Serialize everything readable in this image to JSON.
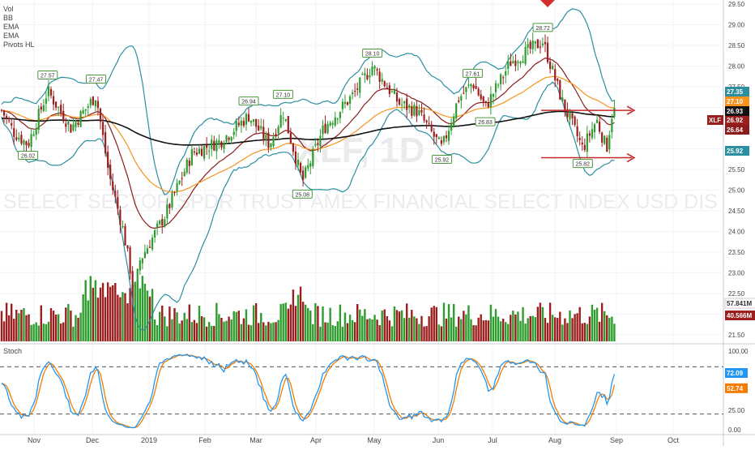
{
  "watermark": {
    "symbol": "XLF, 1D",
    "description": "SELECT SECTOR SPDR TRUST AMEX FINANCIAL SELECT INDEX USD DIS"
  },
  "indicators_legend": [
    "Vol",
    "BB",
    "EMA",
    "EMA",
    "Pivots HL"
  ],
  "stoch_label": "Stoch",
  "colors": {
    "up": "#2e9d2e",
    "down": "#9b1f1f",
    "bb": "#2b8fa0",
    "ema_fast": "#8c1c1c",
    "ema_mid": "#f7931e",
    "ema_slow": "#111111",
    "stoch_k": "#2196f3",
    "stoch_d": "#f57c00",
    "pivot_box": "#4b9b3a",
    "arrow": "#c62828"
  },
  "chart_data": [
    {
      "type": "candlestick",
      "title": "XLF, 1D",
      "xlabel": "",
      "ylabel": "",
      "ylim": [
        21.3,
        29.6
      ],
      "y_ticks": [
        21.5,
        22.0,
        22.5,
        23.0,
        23.5,
        24.0,
        24.5,
        25.0,
        25.5,
        26.0,
        26.5,
        27.0,
        27.5,
        28.0,
        28.5,
        29.0,
        29.5
      ],
      "x_month_labels": [
        "Nov",
        "Dec",
        "2019",
        "Feb",
        "Mar",
        "Apr",
        "May",
        "Jun",
        "Jul",
        "Aug",
        "Sep",
        "Oct"
      ],
      "price_labels": [
        {
          "label": "XLF",
          "value": "26.92",
          "color": "#9b1f1f"
        },
        {
          "label": "",
          "value": "27.35",
          "color": "#2b8fa0"
        },
        {
          "label": "",
          "value": "27.10",
          "color": "#f7931e"
        },
        {
          "label": "",
          "value": "26.93",
          "color": "#111111"
        },
        {
          "label": "",
          "value": "26.64",
          "color": "#8c1c1c"
        },
        {
          "label": "",
          "value": "25.92",
          "color": "#2b8fa0"
        },
        {
          "label": "",
          "value": "57.841M",
          "color": "#ffffff"
        },
        {
          "label": "",
          "value": "40.566M",
          "color": "#9b1f1f"
        }
      ],
      "pivots": [
        {
          "label": "27.57",
          "date": "2018-11-08",
          "kind": "high"
        },
        {
          "label": "27.47",
          "date": "2018-12-03",
          "kind": "high"
        },
        {
          "label": "26.02",
          "date": "2018-10-29",
          "kind": "low"
        },
        {
          "label": "26.94",
          "date": "2019-02-25",
          "kind": "high"
        },
        {
          "label": "27.10",
          "date": "2019-03-15",
          "kind": "high"
        },
        {
          "label": "25.08",
          "date": "2019-03-25",
          "kind": "low"
        },
        {
          "label": "28.10",
          "date": "2019-04-30",
          "kind": "high"
        },
        {
          "label": "25.92",
          "date": "2019-06-03",
          "kind": "low"
        },
        {
          "label": "27.61",
          "date": "2019-06-20",
          "kind": "high"
        },
        {
          "label": "26.83",
          "date": "2019-06-27",
          "kind": "low"
        },
        {
          "label": "28.72",
          "date": "2019-07-26",
          "kind": "high"
        },
        {
          "label": "25.82",
          "date": "2019-08-15",
          "kind": "low"
        }
      ],
      "resistance_level": 26.93,
      "support_level": 25.92
    },
    {
      "type": "line",
      "title": "Stoch",
      "xlabel": "",
      "ylabel": "",
      "ylim": [
        -5,
        105
      ],
      "y_ticks": [
        0.0,
        25.0,
        100.0
      ],
      "levels": [
        20,
        80
      ],
      "last_k": "72.09",
      "last_d": "52.74"
    }
  ]
}
